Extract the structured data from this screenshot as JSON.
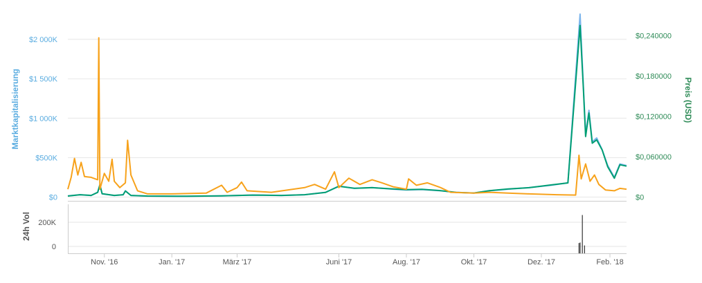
{
  "chart_data": {
    "type": "line",
    "x_axis": {
      "ticks": [
        "Nov. '16",
        "Jan. '17",
        "März '17",
        "Juni '17",
        "Aug. '17",
        "Okt. '17",
        "Dez. '17",
        "Feb. '18"
      ],
      "tick_dates": [
        "2016-11-01",
        "2017-01-01",
        "2017-03-01",
        "2017-06-01",
        "2017-08-01",
        "2017-10-01",
        "2017-12-01",
        "2018-02-01"
      ],
      "range": [
        "2016-09-29",
        "2018-02-16"
      ]
    },
    "y_left": {
      "label": "Marktkapitalisierung",
      "ticks": [
        "$0",
        "$500K",
        "$1 000K",
        "$1 500K",
        "$2 000K"
      ],
      "tick_values": [
        0,
        500000,
        1000000,
        1500000,
        2000000
      ],
      "range": [
        0,
        2000000
      ]
    },
    "y_right": {
      "label": "Preis (USD)",
      "ticks": [
        "$0",
        "$0,060000",
        "$0,120000",
        "$0,180000",
        "$0,240000"
      ],
      "tick_values": [
        0,
        0.06,
        0.12,
        0.18,
        0.24
      ],
      "range": [
        0,
        0.24
      ]
    },
    "y_volume": {
      "label": "24h Vol",
      "ticks": [
        "0",
        "200K"
      ],
      "tick_values": [
        0,
        200000
      ],
      "range": [
        0,
        200000
      ]
    },
    "grid": true,
    "legend": "none",
    "colors": {
      "market_cap": "#7cb5ec",
      "price": "#009e73",
      "volume_usd": "#f7a21b",
      "volume_bars": "#333333"
    },
    "series": [
      {
        "key": "market_cap",
        "axis": "left",
        "points": [
          [
            "2016-09-29",
            15000
          ],
          [
            "2016-10-10",
            30000
          ],
          [
            "2016-10-20",
            20000
          ],
          [
            "2016-10-26",
            60000
          ],
          [
            "2016-10-28",
            160000
          ],
          [
            "2016-10-30",
            40000
          ],
          [
            "2016-11-10",
            20000
          ],
          [
            "2016-11-18",
            30000
          ],
          [
            "2016-11-20",
            80000
          ],
          [
            "2016-11-25",
            20000
          ],
          [
            "2016-12-10",
            12000
          ],
          [
            "2017-01-15",
            10000
          ],
          [
            "2017-02-15",
            15000
          ],
          [
            "2017-03-15",
            25000
          ],
          [
            "2017-04-10",
            20000
          ],
          [
            "2017-05-01",
            30000
          ],
          [
            "2017-05-20",
            60000
          ],
          [
            "2017-06-01",
            140000
          ],
          [
            "2017-06-15",
            110000
          ],
          [
            "2017-07-01",
            120000
          ],
          [
            "2017-07-20",
            100000
          ],
          [
            "2017-08-01",
            90000
          ],
          [
            "2017-08-15",
            95000
          ],
          [
            "2017-09-01",
            80000
          ],
          [
            "2017-09-15",
            60000
          ],
          [
            "2017-10-01",
            50000
          ],
          [
            "2017-10-15",
            80000
          ],
          [
            "2017-11-01",
            100000
          ],
          [
            "2017-11-20",
            120000
          ],
          [
            "2017-12-10",
            150000
          ],
          [
            "2017-12-25",
            180000
          ],
          [
            "2018-01-05",
            2320000
          ],
          [
            "2018-01-08",
            1400000
          ],
          [
            "2018-01-10",
            800000
          ],
          [
            "2018-01-13",
            1100000
          ],
          [
            "2018-01-16",
            700000
          ],
          [
            "2018-01-20",
            750000
          ],
          [
            "2018-01-25",
            600000
          ],
          [
            "2018-01-30",
            400000
          ],
          [
            "2018-02-05",
            250000
          ],
          [
            "2018-02-10",
            420000
          ],
          [
            "2018-02-16",
            400000
          ]
        ]
      },
      {
        "key": "price",
        "axis": "right",
        "points": [
          [
            "2016-09-29",
            0.0015
          ],
          [
            "2016-10-10",
            0.0035
          ],
          [
            "2016-10-20",
            0.0025
          ],
          [
            "2016-10-26",
            0.007
          ],
          [
            "2016-10-28",
            0.018
          ],
          [
            "2016-10-30",
            0.005
          ],
          [
            "2016-11-10",
            0.0025
          ],
          [
            "2016-11-18",
            0.0035
          ],
          [
            "2016-11-20",
            0.009
          ],
          [
            "2016-11-25",
            0.0025
          ],
          [
            "2016-12-10",
            0.0015
          ],
          [
            "2017-01-15",
            0.0012
          ],
          [
            "2017-02-15",
            0.0018
          ],
          [
            "2017-03-15",
            0.003
          ],
          [
            "2017-04-10",
            0.0025
          ],
          [
            "2017-05-01",
            0.0035
          ],
          [
            "2017-05-20",
            0.007
          ],
          [
            "2017-06-01",
            0.016
          ],
          [
            "2017-06-15",
            0.013
          ],
          [
            "2017-07-01",
            0.014
          ],
          [
            "2017-07-20",
            0.012
          ],
          [
            "2017-08-01",
            0.011
          ],
          [
            "2017-08-15",
            0.0115
          ],
          [
            "2017-09-01",
            0.0095
          ],
          [
            "2017-09-15",
            0.007
          ],
          [
            "2017-10-01",
            0.006
          ],
          [
            "2017-10-15",
            0.0095
          ],
          [
            "2017-11-01",
            0.012
          ],
          [
            "2017-11-20",
            0.014
          ],
          [
            "2017-12-10",
            0.018
          ],
          [
            "2017-12-25",
            0.021
          ],
          [
            "2018-01-05",
            0.255
          ],
          [
            "2018-01-08",
            0.16
          ],
          [
            "2018-01-10",
            0.09
          ],
          [
            "2018-01-13",
            0.125
          ],
          [
            "2018-01-16",
            0.08
          ],
          [
            "2018-01-20",
            0.085
          ],
          [
            "2018-01-25",
            0.07
          ],
          [
            "2018-01-30",
            0.045
          ],
          [
            "2018-02-05",
            0.028
          ],
          [
            "2018-02-10",
            0.048
          ],
          [
            "2018-02-16",
            0.046
          ]
        ]
      },
      {
        "key": "volume_usd",
        "axis": "left",
        "points": [
          [
            "2016-09-29",
            100000
          ],
          [
            "2016-10-02",
            250000
          ],
          [
            "2016-10-05",
            490000
          ],
          [
            "2016-10-08",
            280000
          ],
          [
            "2016-10-11",
            440000
          ],
          [
            "2016-10-14",
            260000
          ],
          [
            "2016-10-20",
            250000
          ],
          [
            "2016-10-26",
            220000
          ],
          [
            "2016-10-27",
            2020000
          ],
          [
            "2016-10-28",
            100000
          ],
          [
            "2016-11-01",
            300000
          ],
          [
            "2016-11-05",
            200000
          ],
          [
            "2016-11-08",
            480000
          ],
          [
            "2016-11-10",
            200000
          ],
          [
            "2016-11-15",
            120000
          ],
          [
            "2016-11-20",
            180000
          ],
          [
            "2016-11-22",
            720000
          ],
          [
            "2016-11-25",
            280000
          ],
          [
            "2016-12-01",
            80000
          ],
          [
            "2016-12-10",
            40000
          ],
          [
            "2017-01-01",
            40000
          ],
          [
            "2017-02-01",
            50000
          ],
          [
            "2017-02-15",
            150000
          ],
          [
            "2017-02-20",
            60000
          ],
          [
            "2017-03-01",
            120000
          ],
          [
            "2017-03-05",
            190000
          ],
          [
            "2017-03-10",
            80000
          ],
          [
            "2017-04-01",
            60000
          ],
          [
            "2017-05-01",
            120000
          ],
          [
            "2017-05-10",
            160000
          ],
          [
            "2017-05-20",
            100000
          ],
          [
            "2017-05-28",
            320000
          ],
          [
            "2017-06-01",
            120000
          ],
          [
            "2017-06-10",
            240000
          ],
          [
            "2017-06-20",
            160000
          ],
          [
            "2017-07-01",
            220000
          ],
          [
            "2017-07-10",
            180000
          ],
          [
            "2017-07-20",
            130000
          ],
          [
            "2017-08-01",
            100000
          ],
          [
            "2017-08-03",
            230000
          ],
          [
            "2017-08-10",
            150000
          ],
          [
            "2017-08-20",
            180000
          ],
          [
            "2017-09-01",
            120000
          ],
          [
            "2017-09-10",
            60000
          ],
          [
            "2017-10-01",
            50000
          ],
          [
            "2017-10-15",
            60000
          ],
          [
            "2017-11-01",
            50000
          ],
          [
            "2017-11-20",
            40000
          ],
          [
            "2017-12-15",
            30000
          ],
          [
            "2018-01-01",
            25000
          ],
          [
            "2018-01-04",
            530000
          ],
          [
            "2018-01-06",
            230000
          ],
          [
            "2018-01-10",
            420000
          ],
          [
            "2018-01-14",
            200000
          ],
          [
            "2018-01-18",
            280000
          ],
          [
            "2018-01-22",
            160000
          ],
          [
            "2018-01-28",
            90000
          ],
          [
            "2018-02-05",
            80000
          ],
          [
            "2018-02-10",
            110000
          ],
          [
            "2018-02-16",
            100000
          ]
        ]
      }
    ],
    "volume_bars": [
      [
        "2018-01-04",
        28000
      ],
      [
        "2018-01-05",
        32000
      ],
      [
        "2018-01-07",
        260000
      ],
      [
        "2018-01-09",
        8000
      ]
    ]
  }
}
